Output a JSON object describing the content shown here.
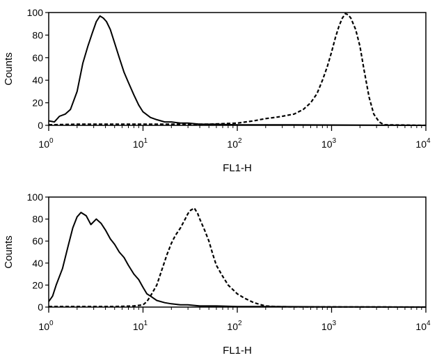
{
  "chart_data": [
    {
      "type": "line",
      "xscale": "log",
      "xlim": [
        1,
        10000
      ],
      "ylim": [
        0,
        100
      ],
      "xlabel": "FL1-H",
      "ylabel": "Counts",
      "xticks": [
        {
          "base": "10",
          "exp": "0"
        },
        {
          "base": "10",
          "exp": "1"
        },
        {
          "base": "10",
          "exp": "2"
        },
        {
          "base": "10",
          "exp": "3"
        },
        {
          "base": "10",
          "exp": "4"
        }
      ],
      "yticks": [
        "0",
        "20",
        "40",
        "60",
        "80",
        "100"
      ],
      "series": [
        {
          "style": "solid",
          "color": "#000000",
          "x": [
            1.0,
            1.15,
            1.3,
            1.5,
            1.7,
            2.0,
            2.3,
            2.6,
            2.9,
            3.2,
            3.5,
            3.8,
            4.1,
            4.5,
            5.0,
            5.6,
            6.3,
            7.0,
            8.0,
            9.0,
            10,
            12,
            14,
            17,
            20,
            25,
            30,
            40,
            60,
            100,
            200,
            400,
            1000,
            3000,
            10000
          ],
          "y": [
            4,
            3,
            8,
            10,
            14,
            30,
            55,
            70,
            82,
            92,
            97,
            95,
            92,
            85,
            73,
            60,
            47,
            38,
            27,
            18,
            12,
            7,
            5,
            3,
            3,
            2,
            2,
            1,
            1,
            0.5,
            0.5,
            0.5,
            0.3,
            0.2,
            0
          ]
        },
        {
          "style": "dashed",
          "color": "#000000",
          "x": [
            1.0,
            2,
            5,
            10,
            20,
            50,
            100,
            150,
            200,
            250,
            300,
            400,
            500,
            600,
            700,
            800,
            900,
            1000,
            1100,
            1200,
            1300,
            1400,
            1500,
            1600,
            1800,
            2000,
            2200,
            2500,
            2800,
            3200,
            3600,
            10000
          ],
          "y": [
            0.5,
            1,
            1,
            1,
            1,
            1,
            2,
            4,
            6,
            7,
            8,
            10,
            14,
            20,
            28,
            40,
            52,
            65,
            78,
            88,
            95,
            99,
            98,
            95,
            85,
            70,
            50,
            25,
            10,
            3,
            0.5,
            0
          ]
        }
      ]
    },
    {
      "type": "line",
      "xscale": "log",
      "xlim": [
        1,
        10000
      ],
      "ylim": [
        0,
        100
      ],
      "xlabel": "FL1-H",
      "ylabel": "Counts",
      "xticks": [
        {
          "base": "10",
          "exp": "0"
        },
        {
          "base": "10",
          "exp": "1"
        },
        {
          "base": "10",
          "exp": "2"
        },
        {
          "base": "10",
          "exp": "3"
        },
        {
          "base": "10",
          "exp": "4"
        }
      ],
      "yticks": [
        "0",
        "20",
        "40",
        "60",
        "80",
        "100"
      ],
      "series": [
        {
          "style": "solid",
          "color": "#000000",
          "x": [
            1.0,
            1.1,
            1.2,
            1.4,
            1.6,
            1.8,
            2.0,
            2.2,
            2.5,
            2.8,
            3.2,
            3.6,
            4.0,
            4.5,
            5.0,
            5.6,
            6.3,
            7.0,
            8.0,
            9.0,
            10,
            11,
            12,
            14,
            17,
            20,
            25,
            30,
            40,
            60,
            100,
            200,
            500,
            1000,
            10000
          ],
          "y": [
            5,
            10,
            20,
            35,
            55,
            72,
            82,
            86,
            83,
            75,
            80,
            76,
            70,
            62,
            57,
            50,
            45,
            38,
            30,
            25,
            18,
            12,
            10,
            6,
            4,
            3,
            2,
            2,
            1,
            1,
            0.5,
            0.5,
            0.3,
            0.2,
            0
          ]
        },
        {
          "style": "dashed",
          "color": "#000000",
          "x": [
            1.0,
            5,
            8,
            10,
            11,
            12,
            14,
            16,
            18,
            20,
            22,
            25,
            28,
            30,
            32,
            35,
            38,
            40,
            45,
            50,
            55,
            60,
            70,
            80,
            100,
            120,
            150,
            180,
            200,
            250,
            300,
            500,
            10000
          ],
          "y": [
            0.5,
            0.5,
            1,
            2,
            5,
            10,
            20,
            35,
            48,
            58,
            65,
            72,
            80,
            85,
            88,
            90,
            85,
            80,
            70,
            60,
            48,
            38,
            28,
            20,
            12,
            8,
            4,
            2,
            1,
            0.5,
            0.3,
            0.2,
            0
          ]
        }
      ]
    }
  ]
}
